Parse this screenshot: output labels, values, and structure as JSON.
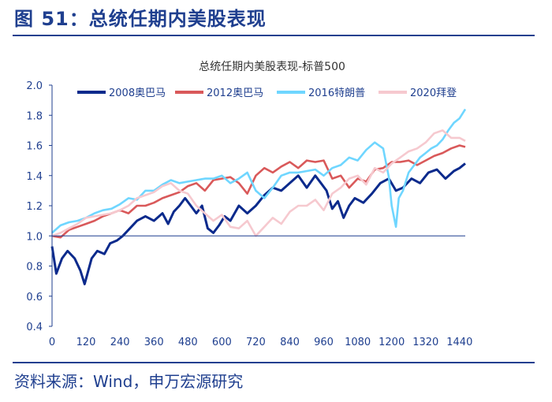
{
  "figure_title": "图 51：总统任期内美股表现",
  "source": "资料来源：Wind，申万宏源研究",
  "chart_data": {
    "type": "line",
    "title": "总统任期内美股表现-标普500",
    "xlabel": "",
    "ylabel": "",
    "xlim": [
      0,
      1460
    ],
    "ylim": [
      0.4,
      2.0
    ],
    "x_ticks": [
      0,
      120,
      240,
      360,
      480,
      600,
      720,
      840,
      960,
      1080,
      1200,
      1320,
      1440
    ],
    "y_ticks": [
      0.4,
      0.6,
      0.8,
      1.0,
      1.2,
      1.4,
      1.6,
      1.8,
      2.0
    ],
    "y_tick_labels": [
      "0.4",
      "0.6",
      "0.8",
      "1.0",
      "1.2",
      "1.4",
      "1.6",
      "1.8",
      "2.0"
    ],
    "grid": false,
    "legend_position": "top",
    "series": [
      {
        "name": "2008奥巴马",
        "color": "#0b2a8c",
        "x": [
          0,
          15,
          35,
          55,
          80,
          100,
          115,
          140,
          160,
          185,
          205,
          230,
          250,
          280,
          300,
          330,
          360,
          390,
          410,
          430,
          450,
          470,
          490,
          510,
          530,
          550,
          570,
          590,
          610,
          630,
          660,
          690,
          720,
          750,
          780,
          810,
          840,
          870,
          900,
          930,
          950,
          970,
          990,
          1010,
          1030,
          1050,
          1070,
          1100,
          1130,
          1160,
          1190,
          1215,
          1240,
          1270,
          1300,
          1330,
          1360,
          1390,
          1420,
          1440,
          1460
        ],
        "y": [
          0.93,
          0.75,
          0.85,
          0.9,
          0.85,
          0.77,
          0.68,
          0.85,
          0.9,
          0.88,
          0.95,
          0.97,
          1.0,
          1.06,
          1.1,
          1.13,
          1.1,
          1.15,
          1.08,
          1.16,
          1.2,
          1.25,
          1.2,
          1.15,
          1.2,
          1.05,
          1.02,
          1.07,
          1.13,
          1.1,
          1.2,
          1.15,
          1.2,
          1.27,
          1.32,
          1.3,
          1.35,
          1.4,
          1.32,
          1.4,
          1.35,
          1.3,
          1.18,
          1.23,
          1.12,
          1.2,
          1.25,
          1.22,
          1.28,
          1.35,
          1.38,
          1.3,
          1.32,
          1.38,
          1.35,
          1.42,
          1.44,
          1.38,
          1.43,
          1.45,
          1.48
        ]
      },
      {
        "name": "2012奥巴马",
        "color": "#d9595a",
        "x": [
          0,
          30,
          60,
          90,
          120,
          150,
          180,
          210,
          240,
          270,
          300,
          330,
          360,
          390,
          420,
          450,
          480,
          510,
          540,
          570,
          600,
          630,
          660,
          690,
          720,
          750,
          780,
          810,
          840,
          870,
          900,
          930,
          960,
          990,
          1020,
          1050,
          1080,
          1110,
          1140,
          1170,
          1200,
          1230,
          1260,
          1290,
          1320,
          1350,
          1380,
          1410,
          1440,
          1460
        ],
        "y": [
          1.0,
          0.99,
          1.04,
          1.06,
          1.08,
          1.1,
          1.13,
          1.15,
          1.17,
          1.15,
          1.2,
          1.2,
          1.22,
          1.25,
          1.27,
          1.29,
          1.33,
          1.35,
          1.3,
          1.37,
          1.38,
          1.39,
          1.35,
          1.28,
          1.4,
          1.45,
          1.42,
          1.46,
          1.49,
          1.45,
          1.5,
          1.49,
          1.5,
          1.38,
          1.4,
          1.32,
          1.38,
          1.36,
          1.44,
          1.45,
          1.49,
          1.49,
          1.5,
          1.47,
          1.5,
          1.53,
          1.55,
          1.58,
          1.6,
          1.59
        ]
      },
      {
        "name": "2016特朗普",
        "color": "#6fd6ff",
        "x": [
          0,
          30,
          60,
          90,
          120,
          150,
          180,
          210,
          240,
          270,
          300,
          330,
          360,
          390,
          420,
          450,
          480,
          510,
          540,
          570,
          600,
          630,
          660,
          690,
          720,
          750,
          780,
          810,
          840,
          870,
          900,
          930,
          960,
          990,
          1020,
          1050,
          1080,
          1110,
          1140,
          1170,
          1190,
          1200,
          1215,
          1225,
          1240,
          1260,
          1280,
          1300,
          1320,
          1340,
          1360,
          1380,
          1400,
          1420,
          1440,
          1460
        ],
        "y": [
          1.02,
          1.07,
          1.09,
          1.1,
          1.12,
          1.15,
          1.17,
          1.18,
          1.21,
          1.25,
          1.24,
          1.3,
          1.3,
          1.34,
          1.37,
          1.35,
          1.36,
          1.37,
          1.38,
          1.38,
          1.4,
          1.35,
          1.38,
          1.42,
          1.3,
          1.25,
          1.32,
          1.4,
          1.42,
          1.42,
          1.43,
          1.44,
          1.4,
          1.45,
          1.47,
          1.52,
          1.5,
          1.57,
          1.62,
          1.58,
          1.39,
          1.2,
          1.06,
          1.25,
          1.3,
          1.42,
          1.47,
          1.52,
          1.55,
          1.58,
          1.6,
          1.64,
          1.7,
          1.75,
          1.78,
          1.84
        ]
      },
      {
        "name": "2020拜登",
        "color": "#f6c9cf",
        "x": [
          0,
          30,
          60,
          90,
          120,
          150,
          180,
          210,
          240,
          270,
          300,
          330,
          360,
          390,
          420,
          450,
          480,
          510,
          540,
          570,
          600,
          630,
          660,
          690,
          720,
          750,
          780,
          810,
          840,
          870,
          900,
          930,
          960,
          990,
          1020,
          1050,
          1080,
          1110,
          1140,
          1170,
          1200,
          1230,
          1260,
          1290,
          1320,
          1350,
          1380,
          1410,
          1440,
          1460
        ],
        "y": [
          1.0,
          1.02,
          1.05,
          1.08,
          1.12,
          1.13,
          1.14,
          1.15,
          1.17,
          1.2,
          1.25,
          1.27,
          1.29,
          1.33,
          1.35,
          1.3,
          1.28,
          1.2,
          1.15,
          1.1,
          1.14,
          1.06,
          1.05,
          1.1,
          1.0,
          1.06,
          1.12,
          1.08,
          1.16,
          1.2,
          1.2,
          1.24,
          1.17,
          1.28,
          1.32,
          1.38,
          1.4,
          1.34,
          1.45,
          1.42,
          1.48,
          1.52,
          1.56,
          1.58,
          1.62,
          1.68,
          1.7,
          1.65,
          1.65,
          1.63
        ]
      }
    ]
  }
}
